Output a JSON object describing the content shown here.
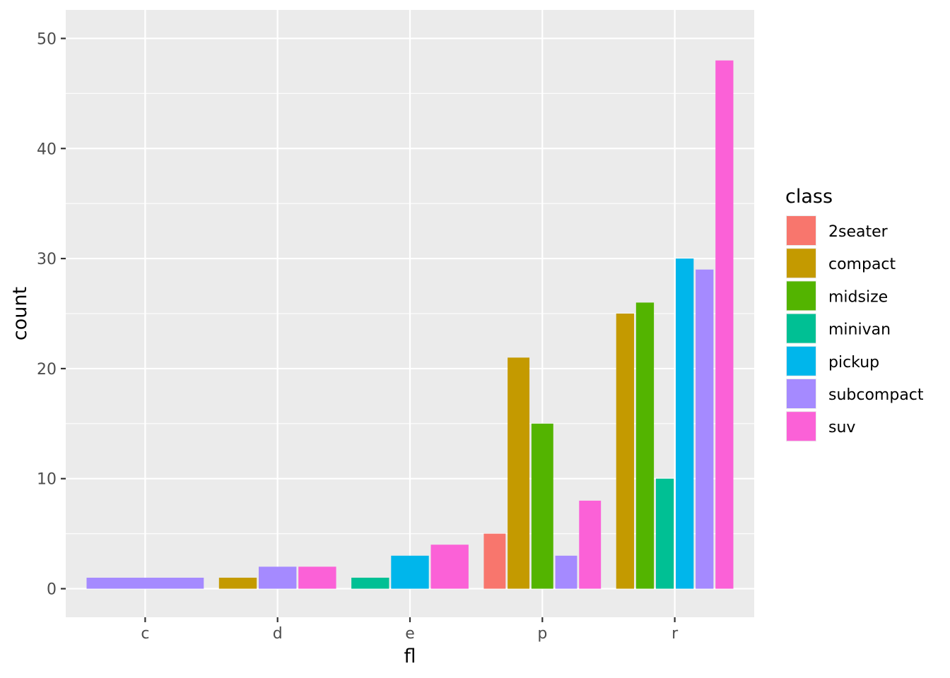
{
  "chart_data": {
    "type": "bar",
    "position": "dodge",
    "xlabel": "fl",
    "ylabel": "count",
    "categories": [
      "c",
      "d",
      "e",
      "p",
      "r"
    ],
    "ylim": [
      0,
      50
    ],
    "yticks": [
      0,
      10,
      20,
      30,
      40,
      50
    ],
    "yticks_label": [
      "0",
      "10",
      "20",
      "30",
      "40",
      "50"
    ],
    "grid": true,
    "legend": {
      "title": "class",
      "placement": "right",
      "entries": [
        {
          "label": "2seater",
          "color": "#F8766D"
        },
        {
          "label": "compact",
          "color": "#C49A00"
        },
        {
          "label": "midsize",
          "color": "#53B400"
        },
        {
          "label": "minivan",
          "color": "#00C094"
        },
        {
          "label": "pickup",
          "color": "#00B6EB"
        },
        {
          "label": "subcompact",
          "color": "#A58AFF"
        },
        {
          "label": "suv",
          "color": "#FB61D7"
        }
      ]
    },
    "groups": [
      {
        "category": "c",
        "bars": [
          {
            "class": "subcompact",
            "value": 1
          }
        ]
      },
      {
        "category": "d",
        "bars": [
          {
            "class": "compact",
            "value": 1
          },
          {
            "class": "subcompact",
            "value": 2
          },
          {
            "class": "suv",
            "value": 2
          }
        ]
      },
      {
        "category": "e",
        "bars": [
          {
            "class": "minivan",
            "value": 1
          },
          {
            "class": "pickup",
            "value": 3
          },
          {
            "class": "suv",
            "value": 4
          }
        ]
      },
      {
        "category": "p",
        "bars": [
          {
            "class": "2seater",
            "value": 5
          },
          {
            "class": "compact",
            "value": 21
          },
          {
            "class": "midsize",
            "value": 15
          },
          {
            "class": "subcompact",
            "value": 3
          },
          {
            "class": "suv",
            "value": 8
          }
        ]
      },
      {
        "category": "r",
        "bars": [
          {
            "class": "compact",
            "value": 25
          },
          {
            "class": "midsize",
            "value": 26
          },
          {
            "class": "minivan",
            "value": 10
          },
          {
            "class": "pickup",
            "value": 30
          },
          {
            "class": "subcompact",
            "value": 29
          },
          {
            "class": "suv",
            "value": 48
          }
        ]
      }
    ],
    "colors": {
      "panel_background": "#EBEBEB",
      "grid": "#FFFFFF",
      "tick_mark": "#333333"
    }
  }
}
